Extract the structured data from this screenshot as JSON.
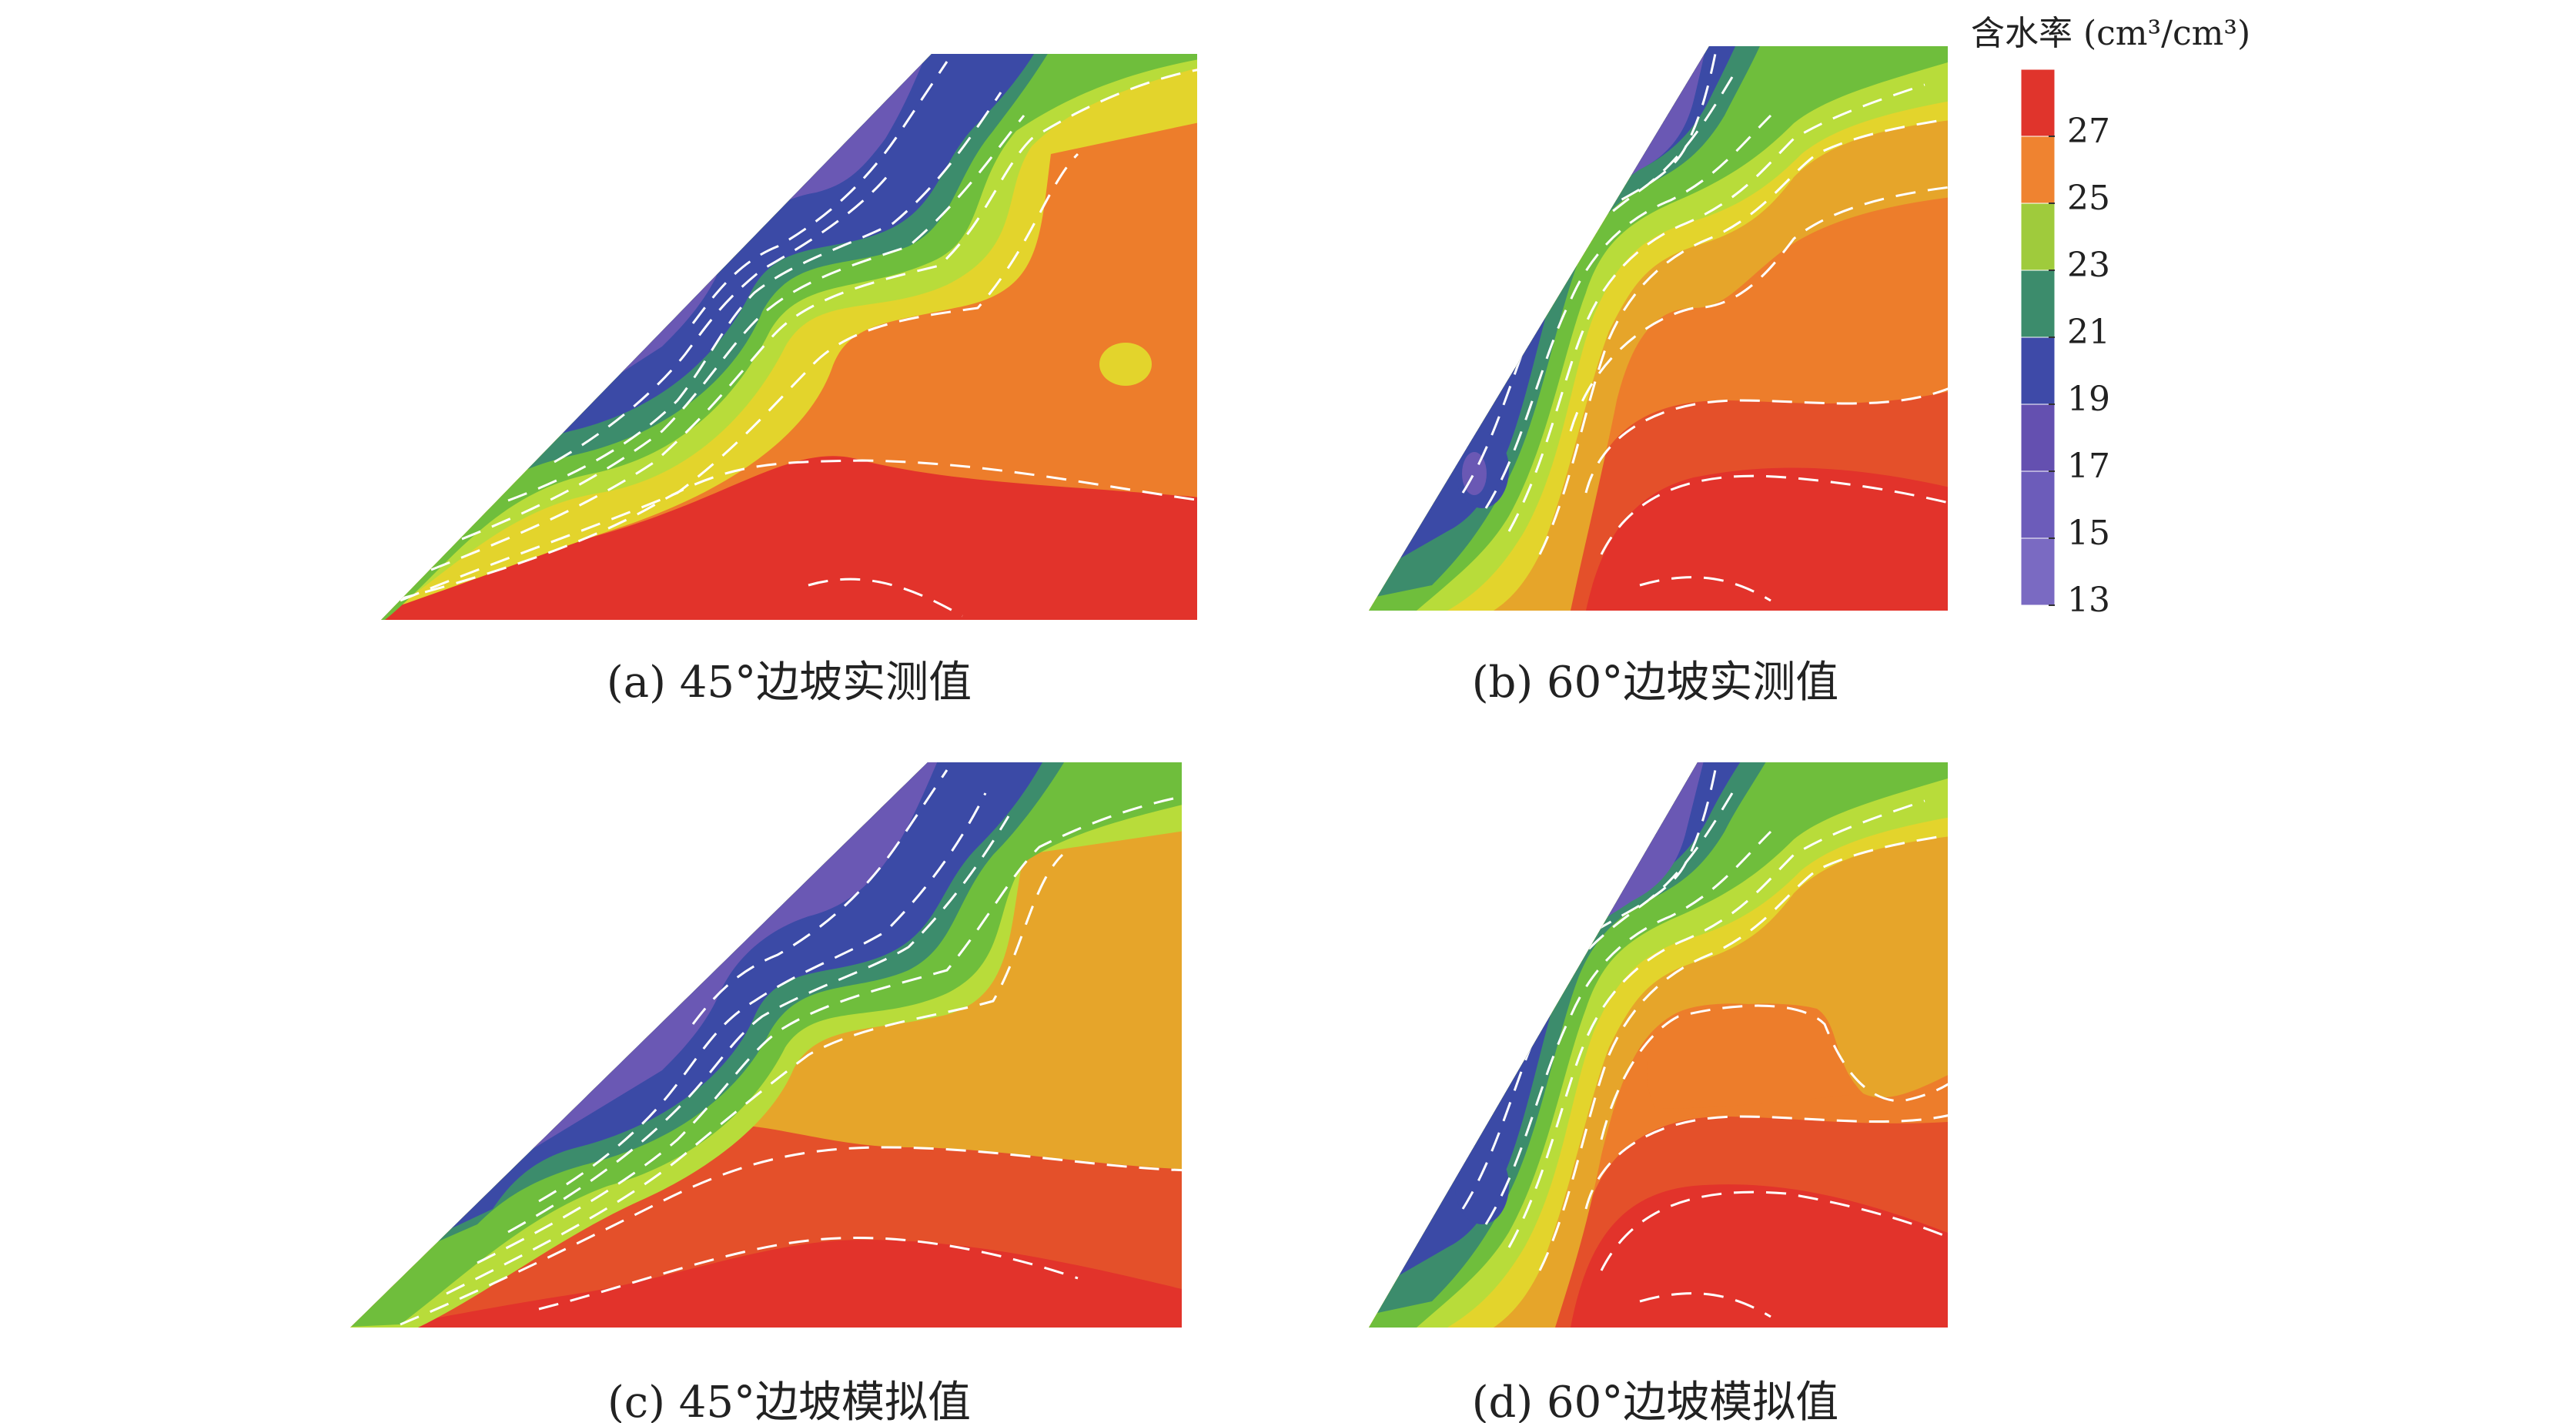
{
  "chart_data": [
    {
      "type": "heatmap",
      "panel": "a",
      "caption": "(a) 45°边坡实测值",
      "slope_angle": "45°",
      "colorbar_band_order_bottom_to_top": [
        "<15",
        "15-17",
        "17-19",
        "19-21",
        "21-23",
        "23-25",
        "25-27",
        ">27"
      ],
      "bands_from_slope_face_inward": [
        "17-19",
        "19-21",
        "21-23",
        "23-25",
        "25-27",
        ">27"
      ],
      "local_feature": "small 25-27 island inside the 25-27 zone near the upper right",
      "contour_lines": "white dashed"
    },
    {
      "type": "heatmap",
      "panel": "b",
      "caption": "(b) 60°边坡实测值",
      "slope_angle": "60°",
      "bands_from_slope_face_inward": [
        "15-17",
        "17-19",
        "19-21",
        "21-23",
        "23-25",
        "25-27",
        ">27"
      ],
      "contour_lines": "white dashed"
    },
    {
      "type": "heatmap",
      "panel": "c",
      "caption": "(c) 45°边坡模拟值",
      "slope_angle": "45°",
      "bands_from_slope_face_inward": [
        "17-19",
        "19-21",
        "21-23",
        "23-25",
        "25-27",
        ">27"
      ],
      "contour_lines": "white dashed"
    },
    {
      "type": "heatmap",
      "panel": "d",
      "caption": "(d) 60°边坡模拟值",
      "slope_angle": "60°",
      "bands_from_slope_face_inward": [
        "15-17",
        "17-19",
        "19-21",
        "21-23",
        "23-25",
        "25-27",
        ">27"
      ],
      "contour_lines": "white dashed"
    }
  ],
  "legend": {
    "title": "含水率 (cm³/cm³)",
    "ticks": [
      "27",
      "25",
      "23",
      "21",
      "19",
      "17",
      "15",
      "13"
    ],
    "colors_top_to_bottom": [
      "#e0342c",
      "#ef8330",
      "#9fcb3c",
      "#3c8c6c",
      "#3e4aa8",
      "#6450b0",
      "#6c5cba",
      "#7a6ac2"
    ]
  },
  "palette": {
    "red": "#e2332b",
    "orange": "#ed7d2b",
    "amber": "#e6a52a",
    "yellow": "#e3d42c",
    "lime": "#b8dc3a",
    "green": "#6fbe3c",
    "teal": "#3c8c6c",
    "blue": "#3b4aa6",
    "purple": "#6a58b4",
    "contour": "#ffffff"
  }
}
